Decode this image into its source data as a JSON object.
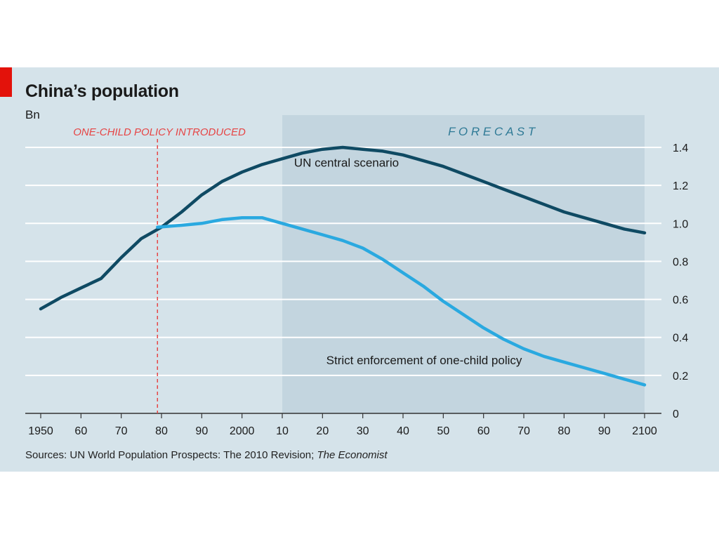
{
  "title": "China’s population",
  "unit_label": "Bn",
  "source": {
    "text": "Sources: UN World Population Prospects: The 2010 Revision; ",
    "italic": "The Economist"
  },
  "colors": {
    "background": "#d5e3ea",
    "forecast_band": "#c3d5df",
    "central": "#0f4a63",
    "strict": "#2aa9e0",
    "policy_line": "#e64545",
    "grid": "#ffffff",
    "brand_red": "#e3120b"
  },
  "chart_data": {
    "type": "line",
    "title": "China’s population",
    "ylabel": "Bn",
    "ylim": [
      0,
      1.4
    ],
    "xlim": [
      1950,
      2100
    ],
    "y_ticks": [
      0,
      0.2,
      0.4,
      0.6,
      0.8,
      1.0,
      1.2,
      1.4
    ],
    "y_tick_labels": [
      "0",
      "0.2",
      "0.4",
      "0.6",
      "0.8",
      "1.0",
      "1.2",
      "1.4"
    ],
    "x_ticks": [
      1950,
      1960,
      1970,
      1980,
      1990,
      2000,
      2010,
      2020,
      2030,
      2040,
      2050,
      2060,
      2070,
      2080,
      2090,
      2100
    ],
    "x_tick_labels": [
      "1950",
      "60",
      "70",
      "80",
      "90",
      "2000",
      "10",
      "20",
      "30",
      "40",
      "50",
      "60",
      "70",
      "80",
      "90",
      "2100"
    ],
    "forecast": {
      "label": "F O R E C A S T",
      "start": 2010,
      "end": 2100
    },
    "policy_marker": {
      "label": "ONE-CHILD POLICY INTRODUCED",
      "x": 1979
    },
    "grid": true,
    "y_axis_position": "right",
    "series": [
      {
        "name": "UN central scenario",
        "x": [
          1950,
          1955,
          1960,
          1965,
          1970,
          1975,
          1980,
          1985,
          1990,
          1995,
          2000,
          2005,
          2010,
          2015,
          2020,
          2025,
          2030,
          2035,
          2040,
          2045,
          2050,
          2055,
          2060,
          2065,
          2070,
          2075,
          2080,
          2085,
          2090,
          2095,
          2100
        ],
        "y": [
          0.55,
          0.61,
          0.66,
          0.71,
          0.82,
          0.92,
          0.98,
          1.06,
          1.15,
          1.22,
          1.27,
          1.31,
          1.34,
          1.37,
          1.39,
          1.4,
          1.39,
          1.38,
          1.36,
          1.33,
          1.3,
          1.26,
          1.22,
          1.18,
          1.14,
          1.1,
          1.06,
          1.03,
          1.0,
          0.97,
          0.95
        ],
        "label_x": 2022,
        "label_y": 1.32
      },
      {
        "name": "Strict enforcement of one-child policy",
        "x": [
          1979,
          1985,
          1990,
          1995,
          2000,
          2005,
          2010,
          2015,
          2020,
          2025,
          2030,
          2035,
          2040,
          2045,
          2050,
          2055,
          2060,
          2065,
          2070,
          2075,
          2080,
          2085,
          2090,
          2095,
          2100
        ],
        "y": [
          0.98,
          0.99,
          1.0,
          1.02,
          1.03,
          1.03,
          1.0,
          0.97,
          0.94,
          0.91,
          0.87,
          0.81,
          0.74,
          0.67,
          0.59,
          0.52,
          0.45,
          0.39,
          0.34,
          0.3,
          0.27,
          0.24,
          0.21,
          0.18,
          0.15
        ],
        "label_x": 2030,
        "label_y": 0.28
      }
    ]
  }
}
